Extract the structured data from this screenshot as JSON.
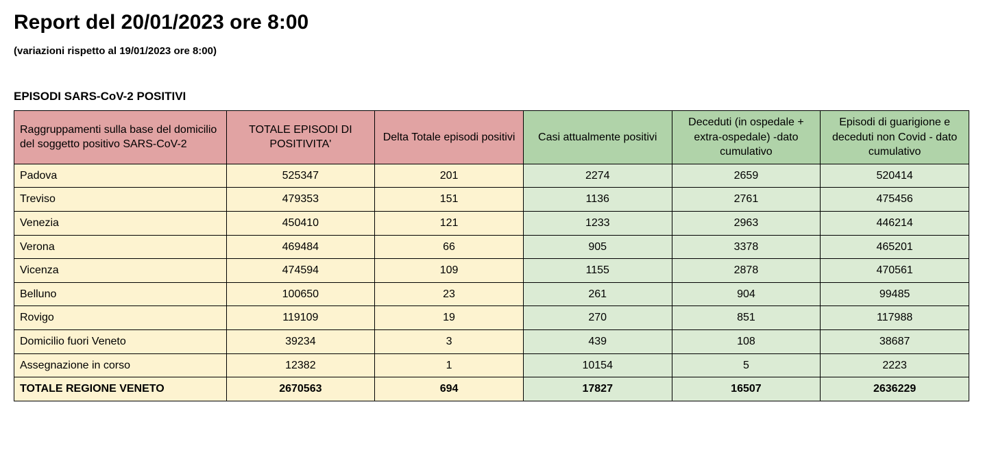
{
  "title": "Report del 20/01/2023 ore 8:00",
  "subtitle": "(variazioni rispetto al 19/01/2023 ore 8:00)",
  "section_title": "EPISODI SARS-CoV-2 POSITIVI",
  "table": {
    "columns": [
      "Raggruppamenti sulla base del domicilio del soggetto positivo SARS-CoV-2",
      "TOTALE EPISODI DI POSITIVITA'",
      "Delta Totale episodi positivi",
      "Casi attualmente positivi",
      "Deceduti (in ospedale + extra-ospedale) -dato cumulativo",
      "Episodi di guarigione e deceduti non Covid - dato cumulativo"
    ],
    "column_header_colors": [
      "#e1a3a3",
      "#e1a3a3",
      "#e1a3a3",
      "#b0d3a9",
      "#b0d3a9",
      "#b0d3a9"
    ],
    "column_body_colors": [
      "#fdf3d0",
      "#fdf3d0",
      "#fdf3d0",
      "#dbebd4",
      "#dbebd4",
      "#dbebd4"
    ],
    "rows": [
      {
        "label": "Padova",
        "values": [
          "525347",
          "201",
          "2274",
          "2659",
          "520414"
        ],
        "is_total": false
      },
      {
        "label": "Treviso",
        "values": [
          "479353",
          "151",
          "1136",
          "2761",
          "475456"
        ],
        "is_total": false
      },
      {
        "label": "Venezia",
        "values": [
          "450410",
          "121",
          "1233",
          "2963",
          "446214"
        ],
        "is_total": false
      },
      {
        "label": "Verona",
        "values": [
          "469484",
          "66",
          "905",
          "3378",
          "465201"
        ],
        "is_total": false
      },
      {
        "label": "Vicenza",
        "values": [
          "474594",
          "109",
          "1155",
          "2878",
          "470561"
        ],
        "is_total": false
      },
      {
        "label": "Belluno",
        "values": [
          "100650",
          "23",
          "261",
          "904",
          "99485"
        ],
        "is_total": false
      },
      {
        "label": "Rovigo",
        "values": [
          "119109",
          "19",
          "270",
          "851",
          "117988"
        ],
        "is_total": false
      },
      {
        "label": "Domicilio fuori Veneto",
        "values": [
          "39234",
          "3",
          "439",
          "108",
          "38687"
        ],
        "is_total": false
      },
      {
        "label": "Assegnazione in corso",
        "values": [
          "12382",
          "1",
          "10154",
          "5",
          "2223"
        ],
        "is_total": false
      },
      {
        "label": "TOTALE REGIONE VENETO",
        "values": [
          "2670563",
          "694",
          "17827",
          "16507",
          "2636229"
        ],
        "is_total": true
      }
    ]
  },
  "styling": {
    "background_color": "#ffffff",
    "text_color": "#000000",
    "border_color": "#000000",
    "header_pink": "#e1a3a3",
    "header_green": "#b0d3a9",
    "cell_cream": "#fdf3d0",
    "cell_green": "#dbebd4",
    "title_fontsize": 30,
    "subtitle_fontsize": 15,
    "section_title_fontsize": 17,
    "cell_fontsize": 16
  }
}
